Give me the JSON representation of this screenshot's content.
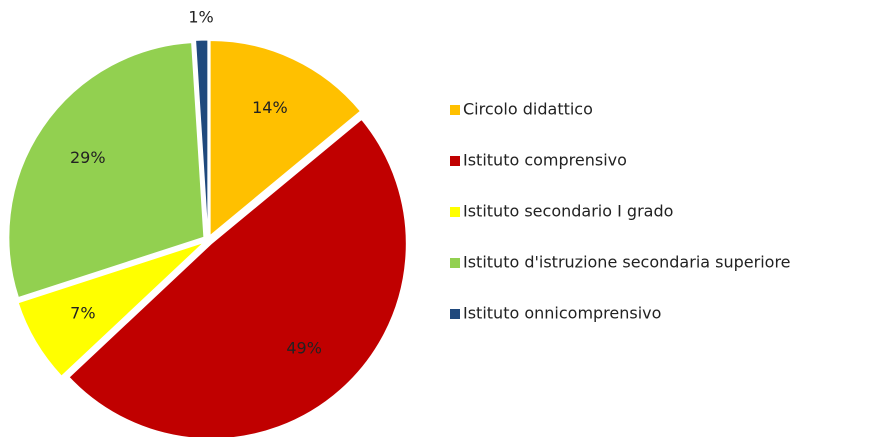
{
  "chart_data": {
    "type": "pie",
    "categories": [
      "Circolo didattico",
      "Istituto comprensivo",
      "Istituto secondario I grado",
      "Istituto d'istruzione secondaria superiore",
      "Istituto onnicomprensivo"
    ],
    "values": [
      14,
      49,
      7,
      29,
      1
    ],
    "value_labels": [
      "14%",
      "49%",
      "7%",
      "29%",
      "1%"
    ],
    "colors": [
      "#FFC000",
      "#C00000",
      "#FFFF00",
      "#92D050",
      "#1F497D"
    ],
    "legend": "right"
  }
}
